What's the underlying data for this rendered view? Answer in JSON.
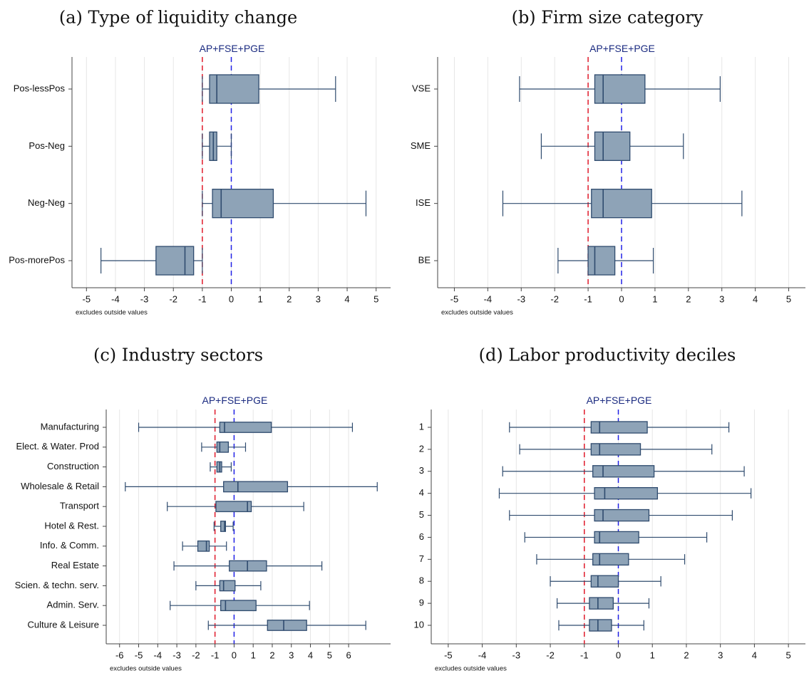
{
  "chart_data": [
    {
      "type": "boxplot",
      "title": "(a) Type of liquidity change",
      "ref_label": "AP+FSE+PGE",
      "note": "excludes outside values",
      "xlim": [
        -5.5,
        5.5
      ],
      "x_ticks": [
        -5,
        -4,
        -3,
        -2,
        -1,
        0,
        1,
        2,
        3,
        4,
        5
      ],
      "x_tick_labels": [
        "-5",
        "-4",
        "-3",
        "-2",
        "-1",
        "0",
        "1",
        "2",
        "3",
        "4",
        "5"
      ],
      "ref_lines": [
        {
          "value": -1,
          "color": "#e0192a"
        },
        {
          "value": 0,
          "color": "#2020e6"
        }
      ],
      "categories": [
        "Pos-lessPos",
        "Pos-Neg",
        "Neg-Neg",
        "Pos-morePos"
      ],
      "boxes": [
        {
          "whisker_low": -1.0,
          "q1": -0.75,
          "median": -0.5,
          "q3": 0.95,
          "whisker_high": 3.6
        },
        {
          "whisker_low": -1.0,
          "q1": -0.75,
          "median": -0.62,
          "q3": -0.5,
          "whisker_high": 0.0
        },
        {
          "whisker_low": -1.0,
          "q1": -0.65,
          "median": -0.35,
          "q3": 1.45,
          "whisker_high": 4.65
        },
        {
          "whisker_low": -4.5,
          "q1": -2.6,
          "median": -1.6,
          "q3": -1.3,
          "whisker_high": -1.0
        }
      ]
    },
    {
      "type": "boxplot",
      "title": "(b) Firm size category",
      "ref_label": "AP+FSE+PGE",
      "note": "excludes outside values",
      "xlim": [
        -5.5,
        5.5
      ],
      "x_ticks": [
        -5,
        -4,
        -3,
        -2,
        -1,
        0,
        1,
        2,
        3,
        4,
        5
      ],
      "x_tick_labels": [
        "-5",
        "-4",
        "-3",
        "-2",
        "-1",
        "0",
        "1",
        "2",
        "3",
        "4",
        "5"
      ],
      "ref_lines": [
        {
          "value": -1,
          "color": "#e0192a"
        },
        {
          "value": 0,
          "color": "#2020e6"
        }
      ],
      "categories": [
        "VSE",
        "SME",
        "ISE",
        "BE"
      ],
      "boxes": [
        {
          "whisker_low": -3.05,
          "q1": -0.8,
          "median": -0.55,
          "q3": 0.7,
          "whisker_high": 2.95
        },
        {
          "whisker_low": -2.4,
          "q1": -0.8,
          "median": -0.55,
          "q3": 0.25,
          "whisker_high": 1.85
        },
        {
          "whisker_low": -3.55,
          "q1": -0.9,
          "median": -0.55,
          "q3": 0.9,
          "whisker_high": 3.6
        },
        {
          "whisker_low": -1.9,
          "q1": -1.0,
          "median": -0.8,
          "q3": -0.2,
          "whisker_high": 0.95
        }
      ]
    },
    {
      "type": "boxplot",
      "title": "(c) Industry sectors",
      "ref_label": "AP+FSE+PGE",
      "note": "excludes outside values",
      "xlim": [
        -6.7,
        8.2
      ],
      "x_ticks": [
        -6,
        -5,
        -4,
        -3,
        -2,
        -1,
        0,
        1,
        2,
        3,
        4,
        5,
        6
      ],
      "x_tick_labels": [
        "-6",
        "-5",
        "-4",
        "-3",
        "-2",
        "-1",
        "0",
        "1",
        "2",
        "3",
        "4",
        "5",
        "6"
      ],
      "ref_lines": [
        {
          "value": -1,
          "color": "#e0192a"
        },
        {
          "value": 0,
          "color": "#2020e6"
        }
      ],
      "categories": [
        "Manufacturing",
        "Elect. & Water. Prod",
        "Construction",
        "Wholesale & Retail",
        "Transport",
        "Hotel & Rest.",
        "Info. & Comm.",
        "Real Estate",
        "Scien. & techn. serv.",
        "Admin. Serv.",
        "Culture & Leisure"
      ],
      "boxes": [
        {
          "whisker_low": -5.0,
          "q1": -0.75,
          "median": -0.5,
          "q3": 1.95,
          "whisker_high": 6.2
        },
        {
          "whisker_low": -1.7,
          "q1": -0.9,
          "median": -0.75,
          "q3": -0.3,
          "whisker_high": 0.6
        },
        {
          "whisker_low": -1.25,
          "q1": -0.9,
          "median": -0.75,
          "q3": -0.65,
          "whisker_high": -0.15
        },
        {
          "whisker_low": -5.7,
          "q1": -0.55,
          "median": 0.2,
          "q3": 2.8,
          "whisker_high": 7.5
        },
        {
          "whisker_low": -3.5,
          "q1": -0.95,
          "median": 0.7,
          "q3": 0.9,
          "whisker_high": 3.65
        },
        {
          "whisker_low": -1.05,
          "q1": -0.7,
          "median": -0.5,
          "q3": -0.45,
          "whisker_high": -0.05
        },
        {
          "whisker_low": -2.7,
          "q1": -1.9,
          "median": -1.45,
          "q3": -1.3,
          "whisker_high": -0.4
        },
        {
          "whisker_low": -3.15,
          "q1": -0.25,
          "median": 0.7,
          "q3": 1.7,
          "whisker_high": 4.6
        },
        {
          "whisker_low": -2.0,
          "q1": -0.75,
          "median": -0.55,
          "q3": 0.05,
          "whisker_high": 1.4
        },
        {
          "whisker_low": -3.35,
          "q1": -0.7,
          "median": -0.45,
          "q3": 1.15,
          "whisker_high": 3.95
        },
        {
          "whisker_low": -1.35,
          "q1": 1.75,
          "median": 2.6,
          "q3": 3.8,
          "whisker_high": 6.9
        }
      ]
    },
    {
      "type": "boxplot",
      "title": "(d) Labor productivity deciles",
      "ref_label": "AP+FSE+PGE",
      "note": "excludes outside values",
      "xlim": [
        -5.5,
        5.5
      ],
      "x_ticks": [
        -5,
        -4,
        -3,
        -2,
        -1,
        0,
        1,
        2,
        3,
        4,
        5
      ],
      "x_tick_labels": [
        "-5",
        "-4",
        "-3",
        "-2",
        "-1",
        "0",
        "1",
        "2",
        "3",
        "4",
        "5"
      ],
      "ref_lines": [
        {
          "value": -1,
          "color": "#e0192a"
        },
        {
          "value": 0,
          "color": "#2020e6"
        }
      ],
      "categories": [
        "1",
        "2",
        "3",
        "4",
        "5",
        "6",
        "7",
        "8",
        "9",
        "10"
      ],
      "boxes": [
        {
          "whisker_low": -3.2,
          "q1": -0.8,
          "median": -0.55,
          "q3": 0.85,
          "whisker_high": 3.25
        },
        {
          "whisker_low": -2.9,
          "q1": -0.8,
          "median": -0.55,
          "q3": 0.65,
          "whisker_high": 2.75
        },
        {
          "whisker_low": -3.4,
          "q1": -0.75,
          "median": -0.45,
          "q3": 1.05,
          "whisker_high": 3.7
        },
        {
          "whisker_low": -3.5,
          "q1": -0.7,
          "median": -0.4,
          "q3": 1.15,
          "whisker_high": 3.9
        },
        {
          "whisker_low": -3.2,
          "q1": -0.7,
          "median": -0.45,
          "q3": 0.9,
          "whisker_high": 3.35
        },
        {
          "whisker_low": -2.75,
          "q1": -0.7,
          "median": -0.55,
          "q3": 0.6,
          "whisker_high": 2.6
        },
        {
          "whisker_low": -2.4,
          "q1": -0.75,
          "median": -0.55,
          "q3": 0.3,
          "whisker_high": 1.95
        },
        {
          "whisker_low": -2.0,
          "q1": -0.8,
          "median": -0.6,
          "q3": 0.0,
          "whisker_high": 1.25
        },
        {
          "whisker_low": -1.8,
          "q1": -0.85,
          "median": -0.6,
          "q3": -0.15,
          "whisker_high": 0.9
        },
        {
          "whisker_low": -1.75,
          "q1": -0.85,
          "median": -0.6,
          "q3": -0.2,
          "whisker_high": 0.75
        }
      ]
    }
  ]
}
